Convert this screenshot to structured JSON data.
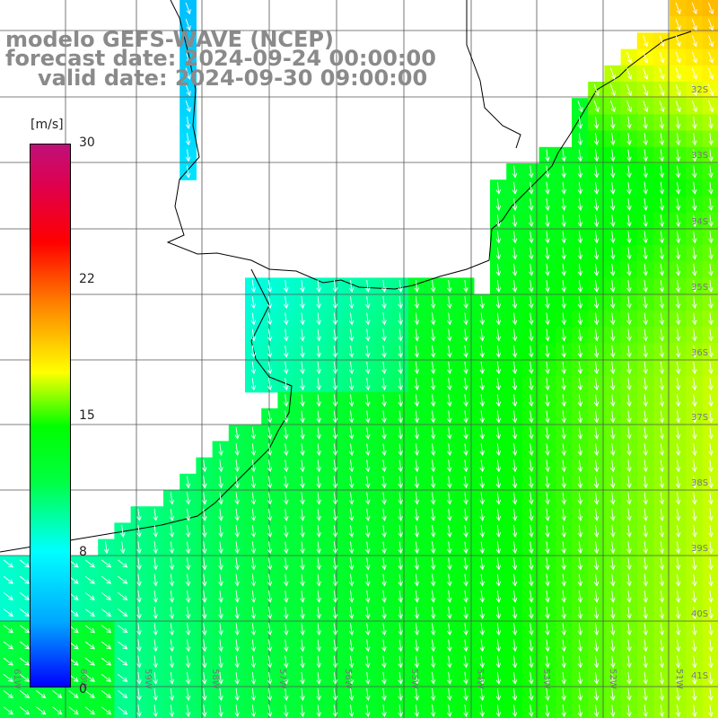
{
  "title": {
    "line1": "modelo GEFS-WAVE (NCEP)",
    "line2": "forecast date: 2024-09-24 00:00:00",
    "line3": "valid date: 2024-09-30 09:00:00"
  },
  "colorbar": {
    "unit": "[m/s]",
    "ticks": [
      "30",
      "22",
      "15",
      "8",
      "0"
    ],
    "tick_values": [
      30,
      22,
      15,
      8,
      0
    ],
    "range": [
      0,
      30
    ]
  },
  "lat_labels": [
    "32S",
    "33S",
    "34S",
    "35S",
    "36S",
    "37S",
    "38S",
    "39S",
    "40S",
    "41S"
  ],
  "lon_labels": [
    "61W",
    "60W",
    "59W",
    "58W",
    "57W",
    "56W",
    "55W",
    "54W",
    "53W",
    "52W",
    "51W"
  ],
  "colors": {
    "land": "#ffffff",
    "grid": "#555555",
    "coast": "#000000",
    "arrow": "#ffffff",
    "title": "#8a8a8a"
  }
}
